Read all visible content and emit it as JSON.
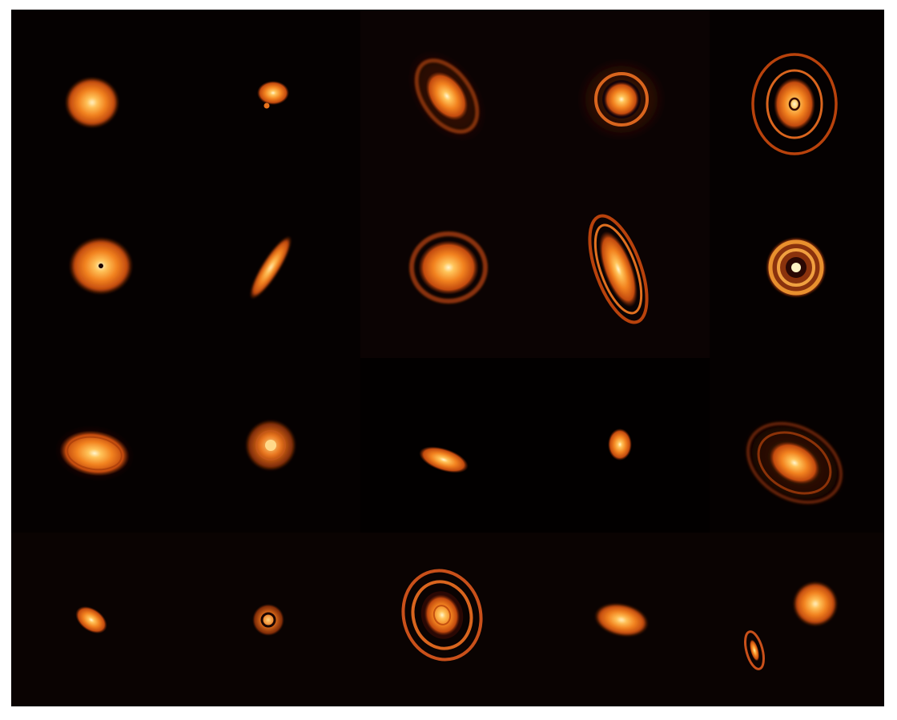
{
  "image": {
    "background": "#050101",
    "palette": {
      "core": "#fff3c4",
      "inner": "#ffb347",
      "mid": "#f07a1a",
      "outer": "#b8420c",
      "ring": "#d9651e",
      "faint": "#5a1c06"
    },
    "grid": {
      "rows": 4,
      "columns": 5
    },
    "panels": [
      {
        "name": "disk-r1c1",
        "kind": "compact-disk"
      },
      {
        "name": "disk-r1c2",
        "kind": "small-disk-with-companion"
      },
      {
        "name": "disk-r1c3",
        "kind": "inclined-disk-with-outer-ring"
      },
      {
        "name": "disk-r1c4",
        "kind": "disk-with-gap-and-halo"
      },
      {
        "name": "disk-r1c5",
        "kind": "multi-ring-disk"
      },
      {
        "name": "disk-r2c1",
        "kind": "disk-with-central-cavity"
      },
      {
        "name": "disk-r2c2",
        "kind": "edge-on-disk"
      },
      {
        "name": "disk-r2c3",
        "kind": "disk-with-outer-ring"
      },
      {
        "name": "disk-r2c4",
        "kind": "highly-inclined-ringed-disk"
      },
      {
        "name": "disk-r2c5",
        "kind": "multi-ring-disk"
      },
      {
        "name": "disk-r3c1",
        "kind": "inclined-ringed-disk"
      },
      {
        "name": "disk-r3c2",
        "kind": "round-disk"
      },
      {
        "name": "disk-r3c3",
        "kind": "small-inclined-disk"
      },
      {
        "name": "disk-r3c4",
        "kind": "tiny-disk"
      },
      {
        "name": "disk-r3c5",
        "kind": "large-faint-ringed-disk"
      },
      {
        "name": "disk-r4c1",
        "kind": "small-inclined-disk"
      },
      {
        "name": "disk-r4c2",
        "kind": "ring-with-cavity"
      },
      {
        "name": "disk-r4c3",
        "kind": "bright-multi-ring-disk"
      },
      {
        "name": "disk-r4c4",
        "kind": "inclined-disk"
      },
      {
        "name": "disk-r4c5",
        "kind": "binary-disks"
      }
    ]
  }
}
